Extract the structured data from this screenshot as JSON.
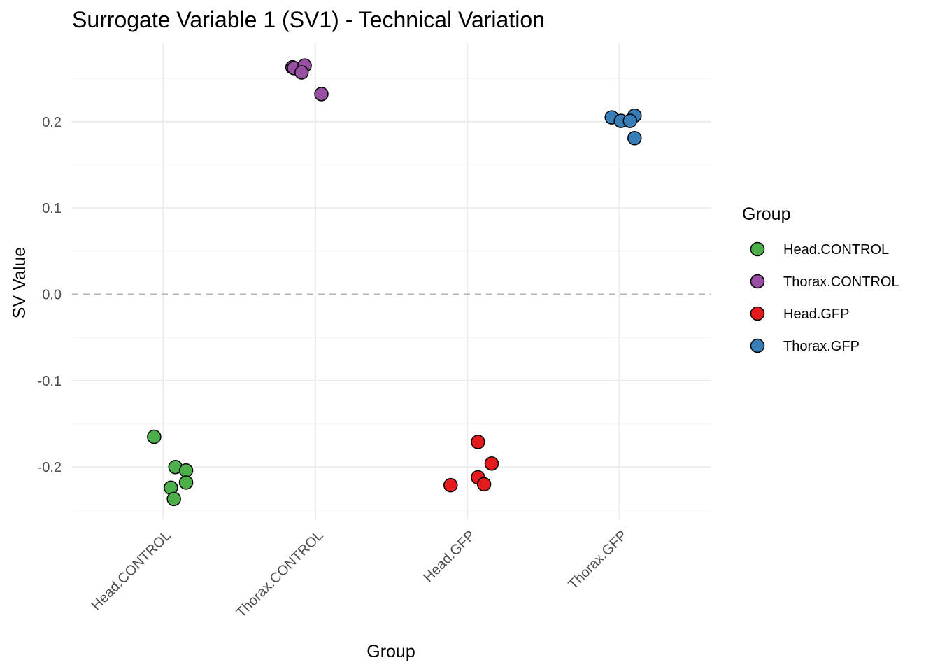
{
  "chart_data": {
    "type": "scatter",
    "title": "Surrogate Variable 1 (SV1) - Technical Variation",
    "xlabel": "Group",
    "ylabel": "SV Value",
    "categories": [
      "Head.CONTROL",
      "Thorax.CONTROL",
      "Head.GFP",
      "Thorax.GFP"
    ],
    "ylim": [
      -0.25,
      0.27
    ],
    "yticks": [
      -0.2,
      -0.1,
      0.0,
      0.1,
      0.2
    ],
    "ytick_labels": [
      "-0.2",
      "-0.1",
      "0.0",
      "0.1",
      "0.2"
    ],
    "reference_line": {
      "y": 0.0,
      "style": "dashed",
      "color": "#b3b3b3"
    },
    "grid": true,
    "legend": {
      "title": "Group",
      "position": "right",
      "entries": [
        "Head.CONTROL",
        "Thorax.CONTROL",
        "Head.GFP",
        "Thorax.GFP"
      ]
    },
    "colors": {
      "Head.CONTROL": "#4daf4a",
      "Thorax.CONTROL": "#984ea3",
      "Head.GFP": "#e41a1c",
      "Thorax.GFP": "#377eb8"
    },
    "series": [
      {
        "name": "Head.CONTROL",
        "points": [
          {
            "x_offset": -0.06,
            "y": -0.165
          },
          {
            "x_offset": 0.08,
            "y": -0.2
          },
          {
            "x_offset": 0.15,
            "y": -0.204
          },
          {
            "x_offset": 0.15,
            "y": -0.218
          },
          {
            "x_offset": 0.05,
            "y": -0.224
          },
          {
            "x_offset": 0.07,
            "y": -0.237
          }
        ]
      },
      {
        "name": "Thorax.CONTROL",
        "points": [
          {
            "x_offset": -0.15,
            "y": 0.263
          },
          {
            "x_offset": -0.14,
            "y": 0.262
          },
          {
            "x_offset": -0.07,
            "y": 0.265
          },
          {
            "x_offset": -0.09,
            "y": 0.257
          },
          {
            "x_offset": 0.04,
            "y": 0.232
          }
        ]
      },
      {
        "name": "Head.GFP",
        "points": [
          {
            "x_offset": 0.07,
            "y": -0.171
          },
          {
            "x_offset": 0.16,
            "y": -0.196
          },
          {
            "x_offset": 0.07,
            "y": -0.212
          },
          {
            "x_offset": 0.11,
            "y": -0.22
          },
          {
            "x_offset": -0.11,
            "y": -0.221
          }
        ]
      },
      {
        "name": "Thorax.GFP",
        "points": [
          {
            "x_offset": -0.05,
            "y": 0.205
          },
          {
            "x_offset": 0.1,
            "y": 0.207
          },
          {
            "x_offset": 0.01,
            "y": 0.201
          },
          {
            "x_offset": 0.07,
            "y": 0.201
          },
          {
            "x_offset": 0.1,
            "y": 0.181
          }
        ]
      }
    ]
  }
}
